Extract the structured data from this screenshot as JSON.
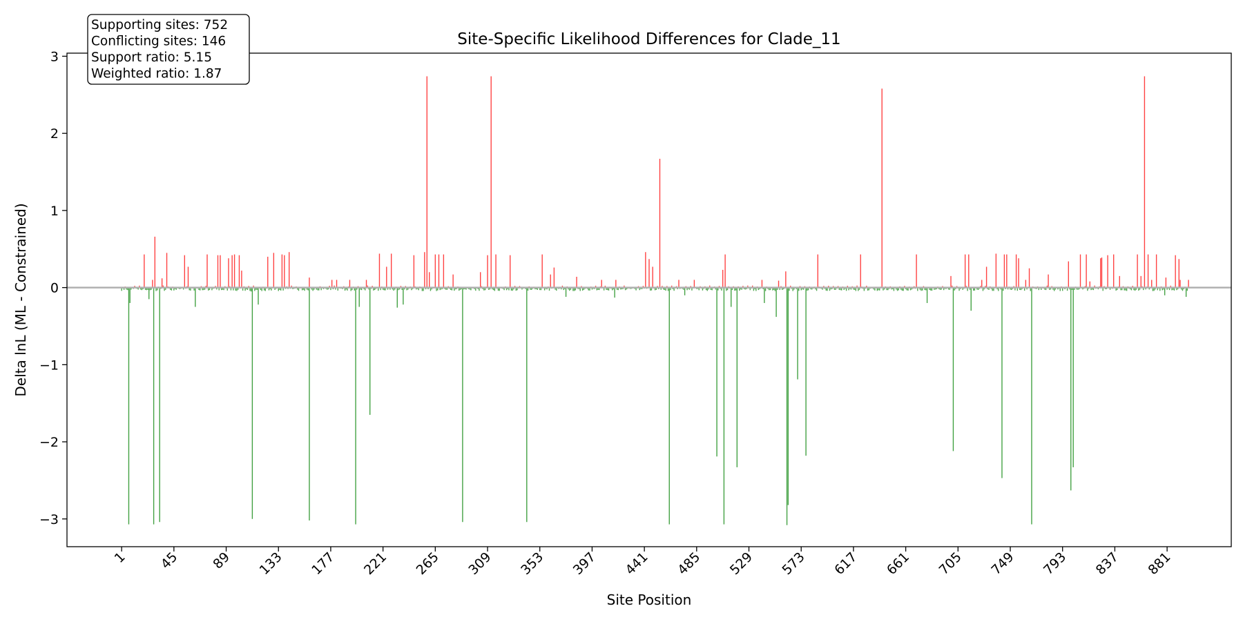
{
  "chart_data": {
    "type": "bar",
    "title": "Site-Specific Likelihood Differences for Clade_11",
    "xlabel": "Site Position",
    "ylabel": "Delta lnL (ML - Constrained)",
    "xlim": [
      -45,
      935
    ],
    "ylim": [
      -3.36,
      3.04
    ],
    "x_ticks": [
      1,
      45,
      89,
      133,
      177,
      221,
      265,
      309,
      353,
      397,
      441,
      485,
      529,
      573,
      617,
      661,
      705,
      749,
      793,
      837,
      881
    ],
    "y_ticks": [
      -3,
      -2,
      -1,
      0,
      1,
      2,
      3
    ],
    "y_tick_labels": [
      "−3",
      "−2",
      "−1",
      "0",
      "1",
      "2",
      "3"
    ],
    "zero_line": true,
    "grid": false,
    "colors": {
      "positive": "#ff0000",
      "negative": "#008000",
      "zero_line": "#b0b0b0"
    },
    "site_count": 898,
    "notable_sites": [
      {
        "x": 7,
        "y": -3.07
      },
      {
        "x": 8,
        "y": -0.2
      },
      {
        "x": 20,
        "y": 0.43
      },
      {
        "x": 24,
        "y": -0.15
      },
      {
        "x": 27,
        "y": 0.1
      },
      {
        "x": 28,
        "y": -3.07
      },
      {
        "x": 29,
        "y": 0.66
      },
      {
        "x": 33,
        "y": -3.04
      },
      {
        "x": 35,
        "y": 0.12
      },
      {
        "x": 39,
        "y": 0.45
      },
      {
        "x": 54,
        "y": 0.42
      },
      {
        "x": 57,
        "y": 0.27
      },
      {
        "x": 63,
        "y": -0.25
      },
      {
        "x": 73,
        "y": 0.43
      },
      {
        "x": 82,
        "y": 0.42
      },
      {
        "x": 84,
        "y": 0.42
      },
      {
        "x": 91,
        "y": 0.38
      },
      {
        "x": 94,
        "y": 0.42
      },
      {
        "x": 96,
        "y": 0.43
      },
      {
        "x": 100,
        "y": 0.42
      },
      {
        "x": 102,
        "y": 0.22
      },
      {
        "x": 110,
        "y": -0.05
      },
      {
        "x": 111,
        "y": -3.0
      },
      {
        "x": 116,
        "y": -0.22
      },
      {
        "x": 124,
        "y": 0.4
      },
      {
        "x": 129,
        "y": 0.45
      },
      {
        "x": 136,
        "y": 0.43
      },
      {
        "x": 138,
        "y": 0.42
      },
      {
        "x": 142,
        "y": 0.46
      },
      {
        "x": 159,
        "y": -3.02
      },
      {
        "x": 159,
        "y": 0.13
      },
      {
        "x": 178,
        "y": 0.1
      },
      {
        "x": 182,
        "y": 0.1
      },
      {
        "x": 193,
        "y": 0.1
      },
      {
        "x": 198,
        "y": -3.07
      },
      {
        "x": 201,
        "y": -0.25
      },
      {
        "x": 207,
        "y": 0.1
      },
      {
        "x": 210,
        "y": -1.65
      },
      {
        "x": 218,
        "y": 0.44
      },
      {
        "x": 224,
        "y": 0.27
      },
      {
        "x": 228,
        "y": 0.44
      },
      {
        "x": 233,
        "y": -0.26
      },
      {
        "x": 238,
        "y": -0.22
      },
      {
        "x": 247,
        "y": 0.42
      },
      {
        "x": 256,
        "y": 0.46
      },
      {
        "x": 258,
        "y": 2.74
      },
      {
        "x": 260,
        "y": 0.2
      },
      {
        "x": 265,
        "y": 0.43
      },
      {
        "x": 268,
        "y": 0.43
      },
      {
        "x": 272,
        "y": 0.43
      },
      {
        "x": 280,
        "y": 0.17
      },
      {
        "x": 288,
        "y": -3.04
      },
      {
        "x": 303,
        "y": 0.2
      },
      {
        "x": 309,
        "y": 0.42
      },
      {
        "x": 312,
        "y": 2.74
      },
      {
        "x": 316,
        "y": 0.43
      },
      {
        "x": 328,
        "y": 0.42
      },
      {
        "x": 342,
        "y": -3.04
      },
      {
        "x": 355,
        "y": 0.43
      },
      {
        "x": 362,
        "y": 0.17
      },
      {
        "x": 365,
        "y": 0.26
      },
      {
        "x": 375,
        "y": -0.12
      },
      {
        "x": 384,
        "y": 0.14
      },
      {
        "x": 405,
        "y": 0.1
      },
      {
        "x": 416,
        "y": -0.13
      },
      {
        "x": 417,
        "y": 0.1
      },
      {
        "x": 442,
        "y": 0.46
      },
      {
        "x": 445,
        "y": 0.37
      },
      {
        "x": 448,
        "y": 0.27
      },
      {
        "x": 454,
        "y": 1.67
      },
      {
        "x": 462,
        "y": -3.07
      },
      {
        "x": 470,
        "y": 0.1
      },
      {
        "x": 475,
        "y": -0.1
      },
      {
        "x": 483,
        "y": 0.1
      },
      {
        "x": 502,
        "y": -2.19
      },
      {
        "x": 507,
        "y": 0.23
      },
      {
        "x": 508,
        "y": -3.07
      },
      {
        "x": 509,
        "y": 0.43
      },
      {
        "x": 514,
        "y": -0.25
      },
      {
        "x": 519,
        "y": -2.33
      },
      {
        "x": 540,
        "y": 0.1
      },
      {
        "x": 542,
        "y": -0.2
      },
      {
        "x": 552,
        "y": -0.38
      },
      {
        "x": 554,
        "y": 0.09
      },
      {
        "x": 560,
        "y": 0.21
      },
      {
        "x": 561,
        "y": -3.08
      },
      {
        "x": 562,
        "y": -2.82
      },
      {
        "x": 570,
        "y": -1.19
      },
      {
        "x": 577,
        "y": -2.18
      },
      {
        "x": 587,
        "y": 0.43
      },
      {
        "x": 623,
        "y": 0.43
      },
      {
        "x": 641,
        "y": 2.58
      },
      {
        "x": 670,
        "y": 0.43
      },
      {
        "x": 679,
        "y": -0.2
      },
      {
        "x": 699,
        "y": 0.15
      },
      {
        "x": 701,
        "y": -2.12
      },
      {
        "x": 711,
        "y": 0.43
      },
      {
        "x": 714,
        "y": 0.43
      },
      {
        "x": 716,
        "y": -0.3
      },
      {
        "x": 725,
        "y": 0.1
      },
      {
        "x": 729,
        "y": 0.27
      },
      {
        "x": 737,
        "y": 0.44
      },
      {
        "x": 742,
        "y": -2.47
      },
      {
        "x": 744,
        "y": 0.43
      },
      {
        "x": 746,
        "y": 0.43
      },
      {
        "x": 754,
        "y": 0.43
      },
      {
        "x": 756,
        "y": 0.38
      },
      {
        "x": 762,
        "y": 0.1
      },
      {
        "x": 765,
        "y": 0.25
      },
      {
        "x": 767,
        "y": -3.07
      },
      {
        "x": 781,
        "y": 0.17
      },
      {
        "x": 798,
        "y": 0.34
      },
      {
        "x": 800,
        "y": -2.63
      },
      {
        "x": 802,
        "y": -2.33
      },
      {
        "x": 808,
        "y": 0.43
      },
      {
        "x": 813,
        "y": 0.43
      },
      {
        "x": 816,
        "y": 0.08
      },
      {
        "x": 825,
        "y": 0.38
      },
      {
        "x": 826,
        "y": 0.39
      },
      {
        "x": 831,
        "y": 0.42
      },
      {
        "x": 836,
        "y": 0.43
      },
      {
        "x": 841,
        "y": 0.15
      },
      {
        "x": 856,
        "y": 0.43
      },
      {
        "x": 859,
        "y": 0.15
      },
      {
        "x": 862,
        "y": 2.74
      },
      {
        "x": 865,
        "y": 0.43
      },
      {
        "x": 868,
        "y": 0.1
      },
      {
        "x": 872,
        "y": 0.43
      },
      {
        "x": 880,
        "y": 0.13
      },
      {
        "x": 879,
        "y": -0.1
      },
      {
        "x": 888,
        "y": 0.42
      },
      {
        "x": 891,
        "y": 0.37
      },
      {
        "x": 892,
        "y": 0.1
      },
      {
        "x": 897,
        "y": -0.12
      },
      {
        "x": 899,
        "y": 0.1
      }
    ],
    "annotation": {
      "lines": [
        "Supporting sites: 752",
        "Conflicting sites: 146",
        "Support ratio: 5.15",
        "Weighted ratio: 1.87"
      ],
      "placement": "top-left"
    }
  }
}
